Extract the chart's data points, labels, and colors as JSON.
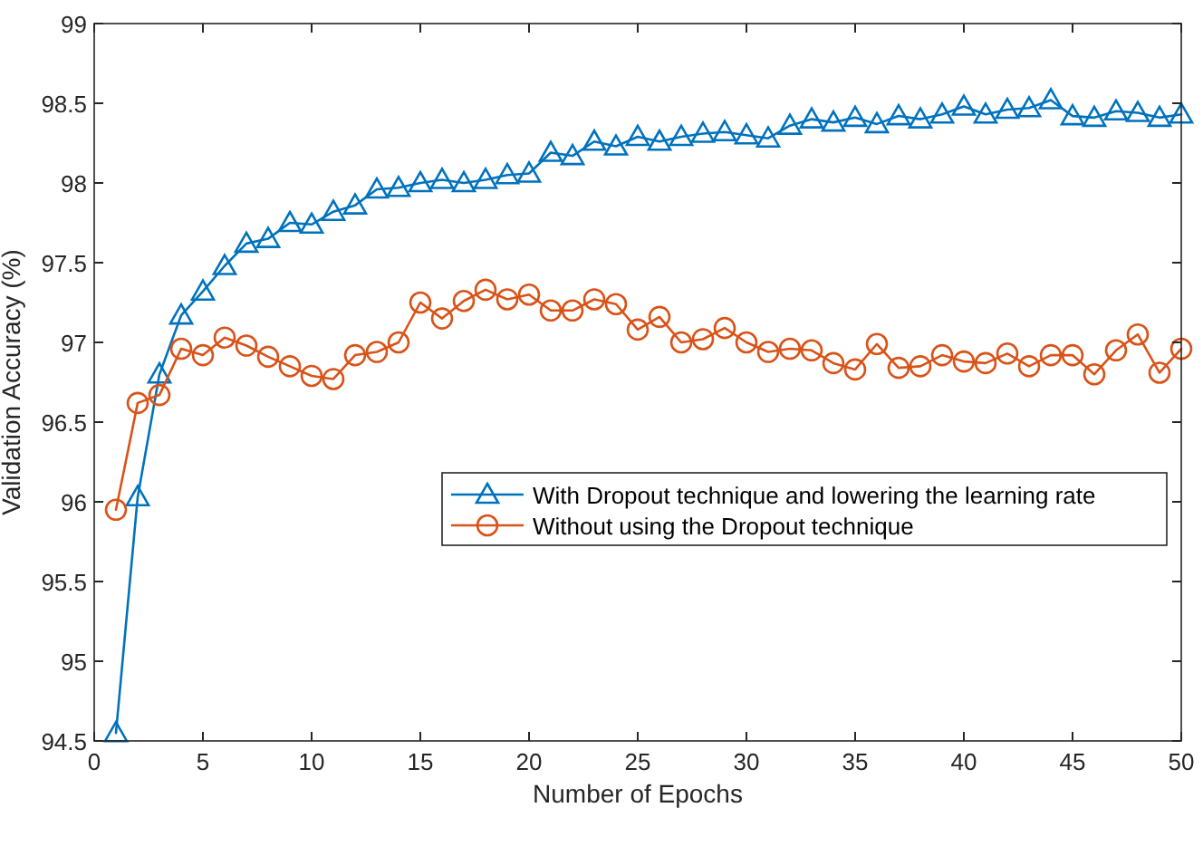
{
  "chart_data": {
    "type": "line",
    "xlabel": "Number of Epochs",
    "ylabel": "Validation Accuracy (%)",
    "x": [
      1,
      2,
      3,
      4,
      5,
      6,
      7,
      8,
      9,
      10,
      11,
      12,
      13,
      14,
      15,
      16,
      17,
      18,
      19,
      20,
      21,
      22,
      23,
      24,
      25,
      26,
      27,
      28,
      29,
      30,
      31,
      32,
      33,
      34,
      35,
      36,
      37,
      38,
      39,
      40,
      41,
      42,
      43,
      44,
      45,
      46,
      47,
      48,
      49,
      50
    ],
    "series": [
      {
        "name": "With Dropout technique and lowering the learning rate",
        "color": "#0072bd",
        "marker": "triangle",
        "values": [
          94.55,
          96.03,
          96.8,
          97.17,
          97.32,
          97.48,
          97.62,
          97.65,
          97.75,
          97.74,
          97.82,
          97.86,
          97.96,
          97.97,
          98.0,
          98.02,
          98.0,
          98.02,
          98.05,
          98.06,
          98.19,
          98.17,
          98.26,
          98.23,
          98.29,
          98.26,
          98.29,
          98.31,
          98.32,
          98.3,
          98.28,
          98.36,
          98.4,
          98.38,
          98.41,
          98.37,
          98.42,
          98.4,
          98.43,
          98.48,
          98.43,
          98.46,
          98.47,
          98.52,
          98.42,
          98.41,
          98.45,
          98.44,
          98.41,
          98.43
        ]
      },
      {
        "name": "Without using the Dropout technique",
        "color": "#d95319",
        "marker": "circle",
        "values": [
          95.95,
          96.62,
          96.67,
          96.96,
          96.92,
          97.03,
          96.98,
          96.91,
          96.85,
          96.79,
          96.77,
          96.92,
          96.94,
          97.0,
          97.25,
          97.15,
          97.26,
          97.33,
          97.27,
          97.3,
          97.2,
          97.2,
          97.27,
          97.24,
          97.08,
          97.16,
          97.0,
          97.02,
          97.09,
          97.0,
          96.94,
          96.96,
          96.95,
          96.87,
          96.83,
          96.99,
          96.84,
          96.85,
          96.92,
          96.88,
          96.87,
          96.93,
          96.85,
          96.92,
          96.92,
          96.8,
          96.95,
          97.05,
          96.81,
          96.96
        ]
      }
    ],
    "xlim": [
      0,
      50
    ],
    "xticks": [
      0,
      5,
      10,
      15,
      20,
      25,
      30,
      35,
      40,
      45,
      50
    ],
    "ylim": [
      94.5,
      99
    ],
    "yticks": [
      94.5,
      95,
      95.5,
      96,
      96.5,
      97,
      97.5,
      98,
      98.5,
      99
    ],
    "grid": false,
    "legend": "right",
    "line_style": "solid"
  }
}
